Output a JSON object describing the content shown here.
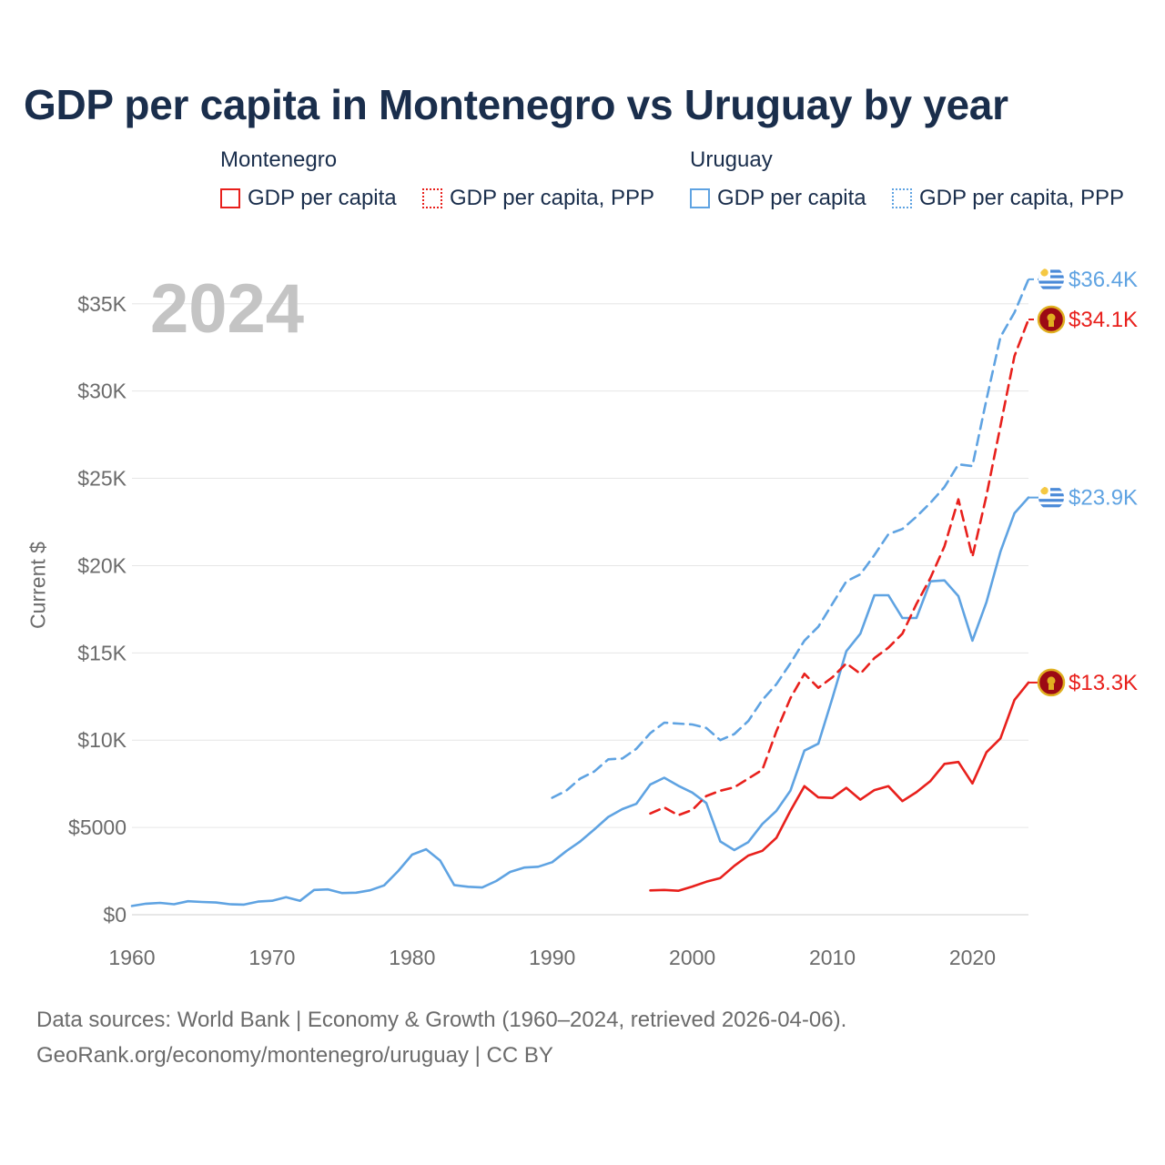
{
  "title": "GDP per capita in Montenegro vs Uruguay by year",
  "year_display": "2024",
  "legend": {
    "montenegro": {
      "name": "Montenegro",
      "gdp": "GDP per capita",
      "ppp": "GDP per capita, PPP"
    },
    "uruguay": {
      "name": "Uruguay",
      "gdp": "GDP per capita",
      "ppp": "GDP per capita, PPP"
    }
  },
  "colors": {
    "montenegro": "#e8201c",
    "uruguay": "#5fa3e2",
    "flag_mne": "#9c0a14",
    "flag_mne_emblem": "#e0b020",
    "flag_ury_sun": "#f5c842"
  },
  "source_lines": [
    "Data sources: World Bank | Economy & Growth (1960–2024, retrieved 2026-04-06).",
    "GeoRank.org/economy/montenegro/uruguay | CC BY"
  ],
  "chart_data": {
    "type": "line",
    "title": "GDP per capita in Montenegro vs Uruguay by year",
    "xlabel": "",
    "ylabel": "Current $",
    "xlim": [
      1960,
      2024
    ],
    "ylim": [
      0,
      36500
    ],
    "x_ticks": [
      1960,
      1970,
      1980,
      1990,
      2000,
      2010,
      2020
    ],
    "y_ticks": [
      0,
      5000,
      10000,
      15000,
      20000,
      25000,
      30000,
      35000
    ],
    "y_tick_labels": [
      "$0",
      "$5000",
      "$10K",
      "$15K",
      "$20K",
      "$25K",
      "$30K",
      "$35K"
    ],
    "grid": true,
    "series": [
      {
        "name": "Uruguay GDP per capita",
        "country": "uruguay",
        "style": "solid",
        "end_label": "$23.9K",
        "x": [
          1960,
          1961,
          1962,
          1963,
          1964,
          1965,
          1966,
          1967,
          1968,
          1969,
          1970,
          1971,
          1972,
          1973,
          1974,
          1975,
          1976,
          1977,
          1978,
          1979,
          1980,
          1981,
          1982,
          1983,
          1984,
          1985,
          1986,
          1987,
          1988,
          1989,
          1990,
          1991,
          1992,
          1993,
          1994,
          1995,
          1996,
          1997,
          1998,
          1999,
          2000,
          2001,
          2002,
          2003,
          2004,
          2005,
          2006,
          2007,
          2008,
          2009,
          2010,
          2011,
          2012,
          2013,
          2014,
          2015,
          2016,
          2017,
          2018,
          2019,
          2020,
          2021,
          2022,
          2023,
          2024
        ],
        "values": [
          500,
          630,
          680,
          600,
          770,
          730,
          700,
          600,
          580,
          750,
          800,
          1000,
          800,
          1420,
          1450,
          1240,
          1260,
          1400,
          1680,
          2500,
          3440,
          3750,
          3100,
          1700,
          1600,
          1560,
          1930,
          2450,
          2700,
          2750,
          3010,
          3640,
          4200,
          4880,
          5600,
          6050,
          6350,
          7460,
          7850,
          7390,
          7000,
          6400,
          4200,
          3700,
          4160,
          5200,
          5950,
          7100,
          9400,
          9800,
          12400,
          15100,
          16100,
          18300,
          18300,
          17000,
          17000,
          19100,
          19150,
          18250,
          15700,
          17900,
          20800,
          23000,
          23900
        ]
      },
      {
        "name": "Uruguay GDP per capita, PPP",
        "country": "uruguay",
        "style": "dashed",
        "end_label": "$36.4K",
        "x": [
          1990,
          1991,
          1992,
          1993,
          1994,
          1995,
          1996,
          1997,
          1998,
          1999,
          2000,
          2001,
          2002,
          2003,
          2004,
          2005,
          2006,
          2007,
          2008,
          2009,
          2010,
          2011,
          2012,
          2013,
          2014,
          2015,
          2016,
          2017,
          2018,
          2019,
          2020,
          2021,
          2022,
          2023,
          2024
        ],
        "values": [
          6700,
          7100,
          7800,
          8200,
          8900,
          8950,
          9500,
          10400,
          11000,
          10950,
          10900,
          10700,
          10000,
          10350,
          11100,
          12300,
          13200,
          14400,
          15700,
          16500,
          17800,
          19100,
          19500,
          20600,
          21800,
          22100,
          22800,
          23600,
          24500,
          25800,
          25700,
          29500,
          33100,
          34500,
          36400
        ]
      },
      {
        "name": "Montenegro GDP per capita",
        "country": "montenegro",
        "style": "solid",
        "end_label": "$13.3K",
        "x": [
          1997,
          1998,
          1999,
          2000,
          2001,
          2002,
          2003,
          2004,
          2005,
          2006,
          2007,
          2008,
          2009,
          2010,
          2011,
          2012,
          2013,
          2014,
          2015,
          2016,
          2017,
          2018,
          2019,
          2020,
          2021,
          2022,
          2023,
          2024
        ],
        "values": [
          1390,
          1420,
          1370,
          1610,
          1890,
          2100,
          2800,
          3390,
          3660,
          4400,
          5950,
          7360,
          6720,
          6690,
          7270,
          6590,
          7140,
          7360,
          6510,
          7020,
          7660,
          8640,
          8750,
          7520,
          9300,
          10100,
          12300,
          13300
        ]
      },
      {
        "name": "Montenegro GDP per capita, PPP",
        "country": "montenegro",
        "style": "dashed",
        "end_label": "$34.1K",
        "x": [
          1997,
          1998,
          1999,
          2000,
          2001,
          2002,
          2003,
          2004,
          2005,
          2006,
          2007,
          2008,
          2009,
          2010,
          2011,
          2012,
          2013,
          2014,
          2015,
          2016,
          2017,
          2018,
          2019,
          2020,
          2021,
          2022,
          2023,
          2024
        ],
        "values": [
          5800,
          6150,
          5700,
          6000,
          6800,
          7100,
          7300,
          7800,
          8300,
          10500,
          12400,
          13800,
          13000,
          13600,
          14400,
          13800,
          14700,
          15300,
          16100,
          17800,
          19300,
          21100,
          23800,
          20500,
          24000,
          28000,
          32000,
          34100
        ]
      }
    ]
  }
}
